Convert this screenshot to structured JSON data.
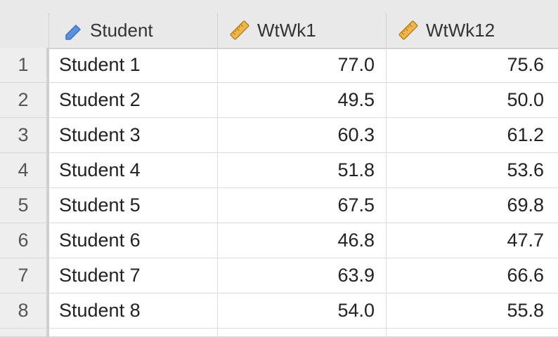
{
  "columns": [
    {
      "label": "Student",
      "icon": "nominal-pencil-icon"
    },
    {
      "label": "WtWk1",
      "icon": "ruler-icon"
    },
    {
      "label": "WtWk12",
      "icon": "ruler-icon"
    }
  ],
  "rows": [
    {
      "num": "1",
      "student": "Student 1",
      "wk1": "77.0",
      "wk12": "75.6"
    },
    {
      "num": "2",
      "student": "Student 2",
      "wk1": "49.5",
      "wk12": "50.0"
    },
    {
      "num": "3",
      "student": "Student 3",
      "wk1": "60.3",
      "wk12": "61.2"
    },
    {
      "num": "4",
      "student": "Student 4",
      "wk1": "51.8",
      "wk12": "53.6"
    },
    {
      "num": "5",
      "student": "Student 5",
      "wk1": "67.5",
      "wk12": "69.8"
    },
    {
      "num": "6",
      "student": "Student 6",
      "wk1": "46.8",
      "wk12": "47.7"
    },
    {
      "num": "7",
      "student": "Student 7",
      "wk1": "63.9",
      "wk12": "66.6"
    },
    {
      "num": "8",
      "student": "Student 8",
      "wk1": "54.0",
      "wk12": "55.8"
    }
  ],
  "colors": {
    "header_bg": "#e9e9e9",
    "pencil_blue": "#5b8fe0",
    "ruler_orange": "#f0b448"
  }
}
